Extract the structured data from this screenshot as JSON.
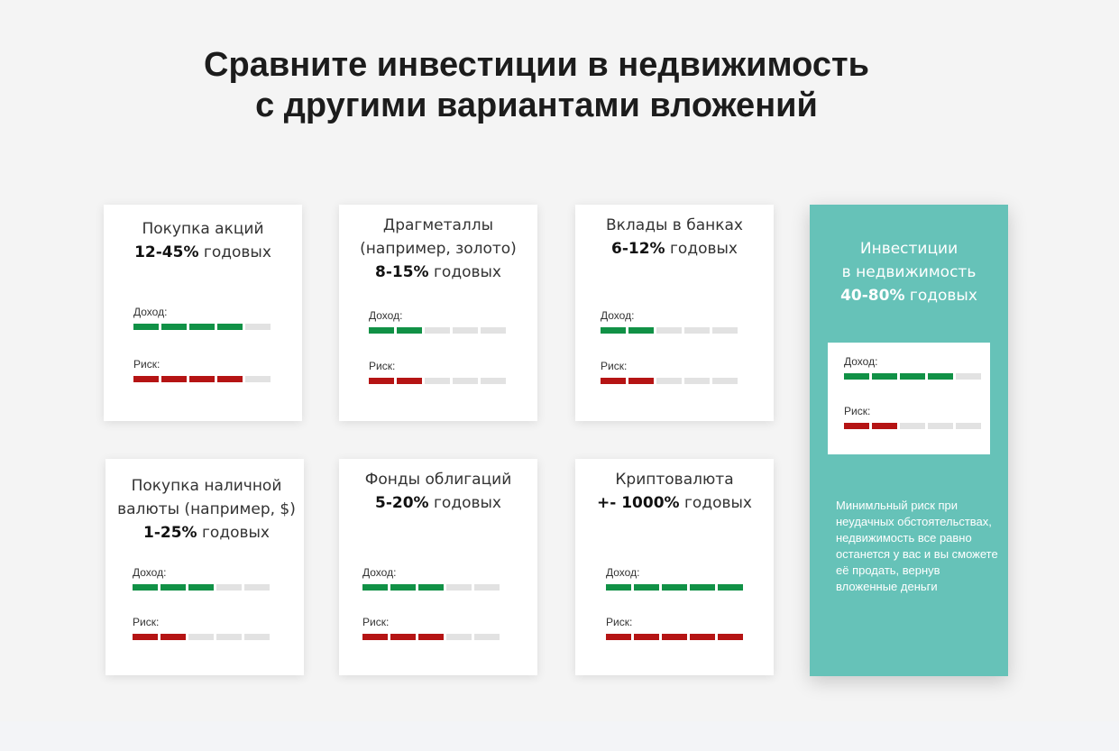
{
  "page": {
    "title_line1": "Сравните инвестиции в недвижимость",
    "title_line2": "с другими вариантами вложений"
  },
  "labels": {
    "income": "Доход:",
    "risk": "Риск:"
  },
  "colors": {
    "income": "#119146",
    "risk": "#b51414",
    "inactive": "#e2e2e2",
    "featured_bg": "#66c2b8"
  },
  "options": [
    {
      "name": "Покупка акций",
      "rate_value": "12-45%",
      "rate_unit": " годовых",
      "income_level": 4,
      "risk_level": 4,
      "scale": 5
    },
    {
      "name": "Драгметаллы (например, золото)",
      "rate_value": "8-15%",
      "rate_unit": " годовых",
      "income_level": 2,
      "risk_level": 2,
      "scale": 5
    },
    {
      "name": "Вклады в банках",
      "rate_value": "6-12%",
      "rate_unit": " годовых",
      "income_level": 2,
      "risk_level": 2,
      "scale": 5
    },
    {
      "name": "Покупка наличной валюты (например, $)",
      "rate_value": "1-25%",
      "rate_unit": " годовых",
      "income_level": 3,
      "risk_level": 2,
      "scale": 5
    },
    {
      "name": "Фонды облигаций",
      "rate_value": "5-20%",
      "rate_unit": " годовых",
      "income_level": 3,
      "risk_level": 3,
      "scale": 5
    },
    {
      "name": "Криптовалюта",
      "rate_value": "+- 1000%",
      "rate_unit": " годовых",
      "income_level": 5,
      "risk_level": 5,
      "scale": 5
    }
  ],
  "featured": {
    "name_line1": "Инвестиции",
    "name_line2": "в недвижимость",
    "rate_value": "40-80%",
    "rate_unit": " годовых",
    "income_level": 4,
    "risk_level": 2,
    "scale": 5,
    "note": "Минимльный риск при неудачных обстоятельствах, недвижимость все равно останется у вас и вы сможете её продать, вернув вложенные деньги"
  }
}
